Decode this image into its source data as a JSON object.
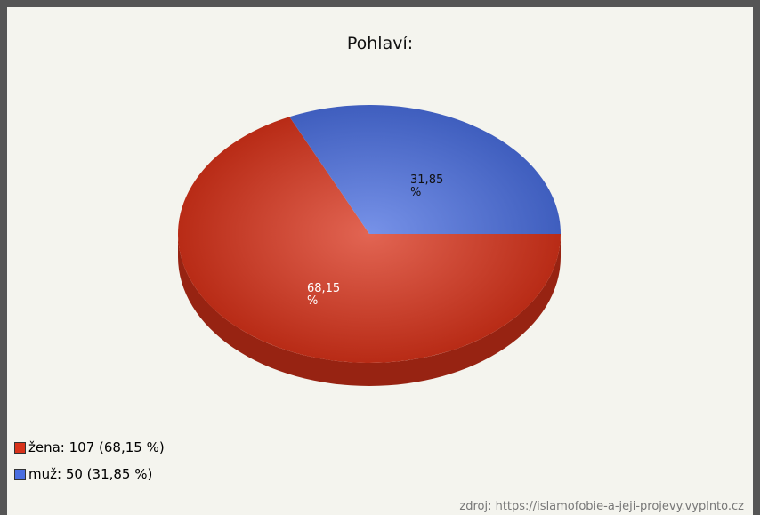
{
  "chart_data": {
    "type": "pie",
    "title": "Pohlaví:",
    "values": [
      68.15,
      31.85
    ],
    "value_labels": [
      "68,15 %",
      "31,85 %"
    ],
    "colors": [
      "#d8321a",
      "#4a6ee0"
    ],
    "legend_labels": [
      "žena: 107 (68,15 %)",
      "muž: 50 (31,85 %)"
    ],
    "source": "zdroj: https://islamofobie-a-jeji-projevy.vyplnto.cz"
  }
}
